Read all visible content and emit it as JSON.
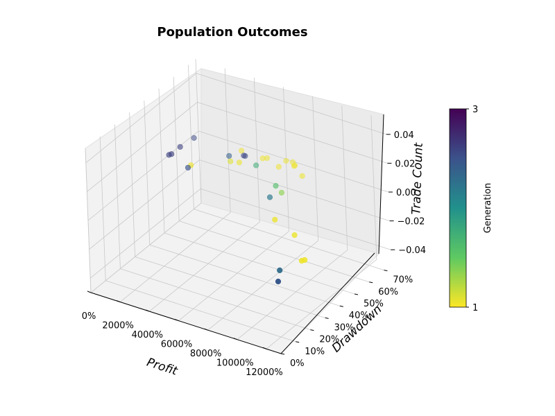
{
  "chart_data": {
    "type": "scatter",
    "projection": "3d",
    "title": "Population Outcomes",
    "xlabel": "Profit",
    "ylabel": "Drawdown",
    "zlabel": "Trade Count",
    "x_ticks": [
      "0%",
      "2000%",
      "4000%",
      "6000%",
      "8000%",
      "10000%",
      "12000%"
    ],
    "y_ticks": [
      "0%",
      "10%",
      "20%",
      "30%",
      "40%",
      "50%",
      "60%",
      "70%"
    ],
    "z_ticks": [
      "−0.04",
      "−0.02",
      "0.00",
      "0.02",
      "0.04"
    ],
    "xlim": [
      0,
      13000
    ],
    "ylim": [
      0,
      0.75
    ],
    "zlim": [
      -0.05,
      0.05
    ],
    "grid": true,
    "colorbar": {
      "label": "Generation",
      "min": 1,
      "max": 3,
      "tick_labels": [
        "1",
        "3"
      ],
      "colormap": "viridis_r"
    },
    "series": [
      {
        "points": [
          {
            "x": 0,
            "y": 0.55,
            "z": 0,
            "gen": 2.6
          },
          {
            "x": 70,
            "y": 0.56,
            "z": 0,
            "gen": 2.6
          },
          {
            "x": 60,
            "y": 0.62,
            "z": 0,
            "gen": 2.6
          },
          {
            "x": 200,
            "y": 0.7,
            "z": 0,
            "gen": 2.55
          },
          {
            "x": 1700,
            "y": 0.53,
            "z": 0,
            "gen": 1.05
          },
          {
            "x": 1700,
            "y": 0.51,
            "z": 0,
            "gen": 2.5
          },
          {
            "x": 3000,
            "y": 0.66,
            "z": 0,
            "gen": 2.4
          },
          {
            "x": 3400,
            "y": 0.63,
            "z": 0,
            "gen": 1.1
          },
          {
            "x": 3900,
            "y": 0.64,
            "z": 0,
            "gen": 1.05
          },
          {
            "x": 3300,
            "y": 0.715,
            "z": 0,
            "gen": 1.05
          },
          {
            "x": 3800,
            "y": 0.69,
            "z": 0,
            "gen": 2.55
          },
          {
            "x": 3700,
            "y": 0.69,
            "z": 0,
            "gen": 2.6
          },
          {
            "x": 4800,
            "y": 0.71,
            "z": 0,
            "gen": 1.05
          },
          {
            "x": 5000,
            "y": 0.72,
            "z": 0,
            "gen": 1.05
          },
          {
            "x": 4900,
            "y": 0.655,
            "z": 0,
            "gen": 1.75
          },
          {
            "x": 6100,
            "y": 0.74,
            "z": 0,
            "gen": 1.05
          },
          {
            "x": 6100,
            "y": 0.69,
            "z": 0,
            "gen": 1.05
          },
          {
            "x": 6500,
            "y": 0.745,
            "z": 0,
            "gen": 1.05
          },
          {
            "x": 6800,
            "y": 0.73,
            "z": 0,
            "gen": 1.05
          },
          {
            "x": 6800,
            "y": 0.725,
            "z": 0,
            "gen": 1.05
          },
          {
            "x": 7800,
            "y": 0.68,
            "z": 0,
            "gen": 1.05
          },
          {
            "x": 7100,
            "y": 0.57,
            "z": 0,
            "gen": 1.6
          },
          {
            "x": 7800,
            "y": 0.54,
            "z": 0,
            "gen": 1.35
          },
          {
            "x": 7500,
            "y": 0.49,
            "z": 0,
            "gen": 2.2
          },
          {
            "x": 9100,
            "y": 0.365,
            "z": 0,
            "gen": 1.05
          },
          {
            "x": 11000,
            "y": 0.31,
            "z": 0,
            "gen": 1.05
          },
          {
            "x": 12900,
            "y": 0.17,
            "z": 0,
            "gen": 1.05
          },
          {
            "x": 13000,
            "y": 0.18,
            "z": 0,
            "gen": 1.05
          },
          {
            "x": 12400,
            "y": 0.07,
            "z": 0,
            "gen": 2.3
          },
          {
            "x": 13000,
            "y": 0.0,
            "z": 0,
            "gen": 2.45
          }
        ]
      }
    ]
  }
}
